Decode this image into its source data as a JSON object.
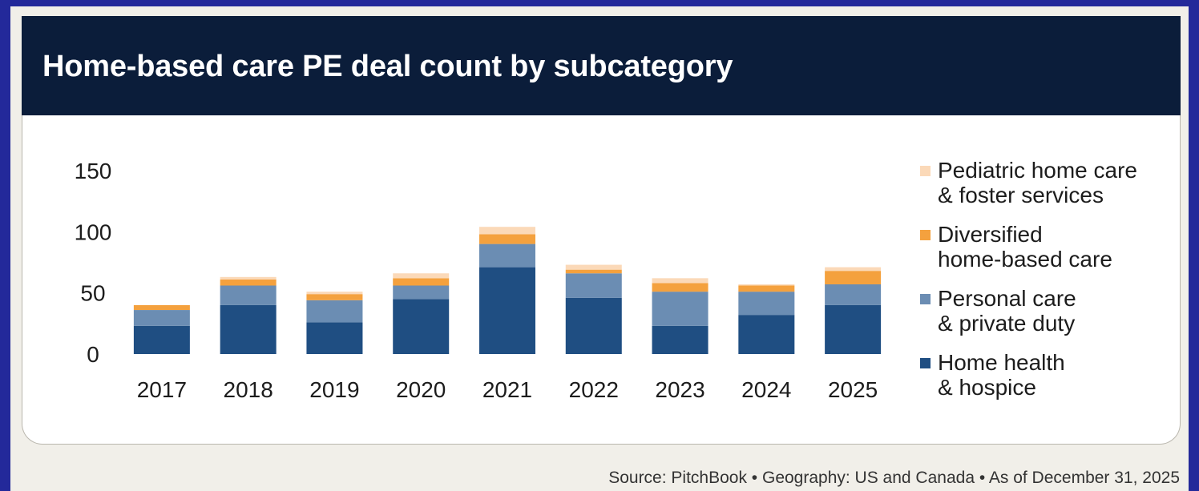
{
  "title": "Home-based care PE deal count by subcategory",
  "source": "Source: PitchBook  •  Geography: US and Canada  •  As of December 31, 2025",
  "colors": {
    "background": "#23299a",
    "header": "#0b1d3a",
    "home_health": "#1f4e82",
    "personal_care": "#6b8db3",
    "diversified": "#f4a13e",
    "pediatric": "#fbd9b8"
  },
  "chart_data": {
    "type": "bar",
    "stacked": true,
    "categories": [
      "2017",
      "2018",
      "2019",
      "2020",
      "2021",
      "2022",
      "2023",
      "2024",
      "2025"
    ],
    "ylim": [
      0,
      150
    ],
    "yticks": [
      "150",
      "100",
      "50",
      "0"
    ],
    "grid": false,
    "legend_position": "right",
    "series": [
      {
        "name": "Home health\n& hospice",
        "color": "#1f4e82",
        "values": [
          23,
          40,
          26,
          45,
          71,
          46,
          23,
          32,
          40
        ]
      },
      {
        "name": "Personal care\n& private duty",
        "color": "#6b8db3",
        "values": [
          13,
          16,
          18,
          11,
          19,
          20,
          28,
          19,
          17
        ]
      },
      {
        "name": "Diversified\nhome-based care",
        "color": "#f4a13e",
        "values": [
          4,
          5,
          5,
          6,
          8,
          3,
          7,
          5,
          11
        ]
      },
      {
        "name": "Pediatric home care\n& foster services",
        "color": "#fbd9b8",
        "values": [
          0,
          2,
          2,
          4,
          6,
          4,
          4,
          1,
          3
        ]
      }
    ]
  }
}
